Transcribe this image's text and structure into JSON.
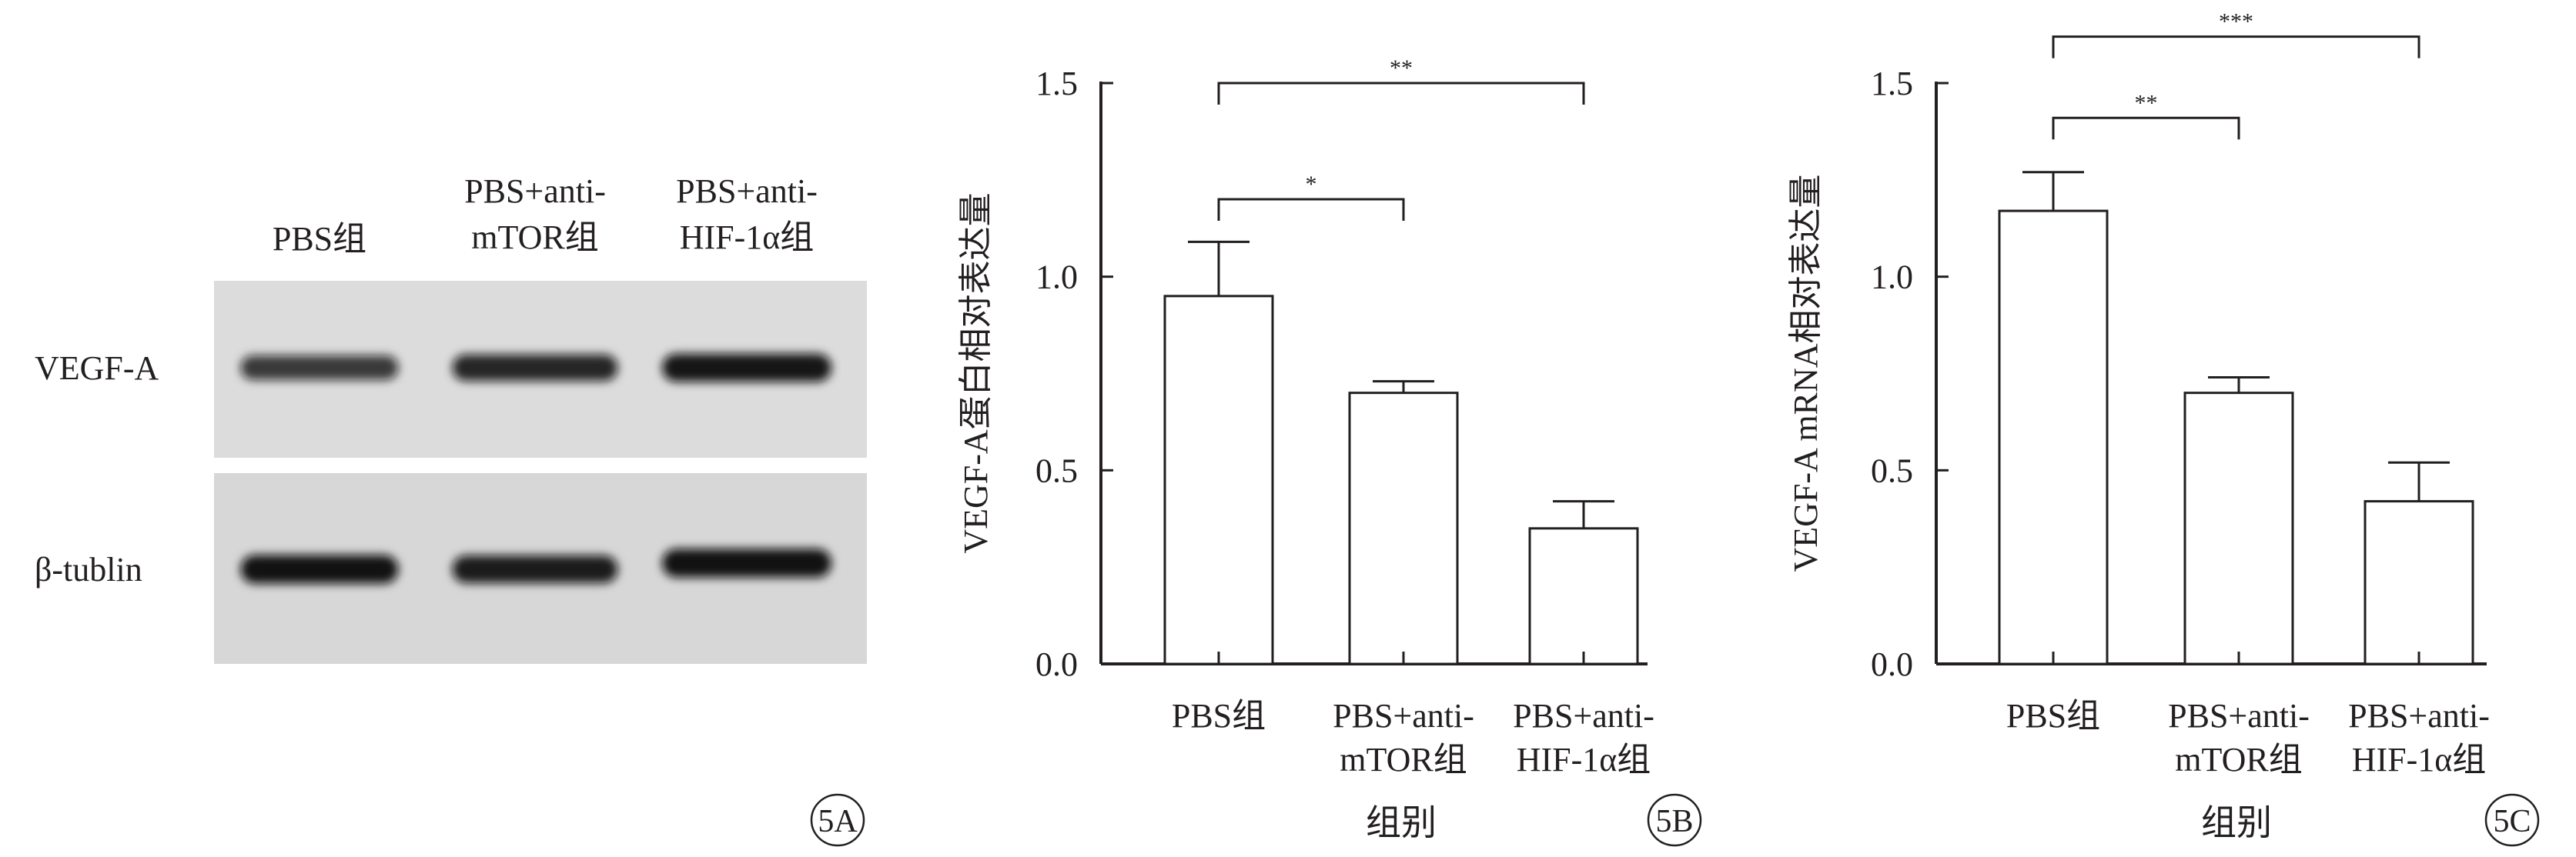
{
  "panel_a": {
    "lanes": [
      "PBS组",
      "PBS+anti-\nmTOR组",
      "PBS+anti-\nHIF-1α组"
    ],
    "bands": [
      "VEGF-A",
      "β-tublin"
    ],
    "band_intensity": {
      "VEGF-A": [
        0.55,
        0.75,
        0.9
      ],
      "β-tublin": [
        0.95,
        0.85,
        0.95
      ]
    },
    "panel_label": "5A"
  },
  "chart_data": [
    {
      "type": "bar",
      "panel_label": "5B",
      "categories": [
        "PBS组",
        "PBS+anti-\nmTOR组",
        "PBS+anti-\nHIF-1α组"
      ],
      "values": [
        0.95,
        0.7,
        0.35
      ],
      "errors": [
        0.14,
        0.03,
        0.07
      ],
      "ylabel": "VEGF-A蛋白相对表达量",
      "xlabel": "组别",
      "ylim": [
        0,
        1.5
      ],
      "yticks": [
        "0.0",
        "0.5",
        "1.0",
        "1.5"
      ],
      "grid": false,
      "significance": [
        {
          "from": 0,
          "to": 1,
          "label": "*",
          "level": 1.2
        },
        {
          "from": 0,
          "to": 2,
          "label": "**",
          "level": 1.5
        }
      ]
    },
    {
      "type": "bar",
      "panel_label": "5C",
      "categories": [
        "PBS组",
        "PBS+anti-\nmTOR组",
        "PBS+anti-\nHIF-1α组"
      ],
      "values": [
        1.17,
        0.7,
        0.42
      ],
      "errors": [
        0.1,
        0.04,
        0.1
      ],
      "ylabel": "VEGF-A mRNA相对表达量",
      "xlabel": "组别",
      "ylim": [
        0,
        1.5
      ],
      "yticks": [
        "0.0",
        "0.5",
        "1.0",
        "1.5"
      ],
      "grid": false,
      "significance": [
        {
          "from": 0,
          "to": 1,
          "label": "**",
          "level": 1.41
        },
        {
          "from": 0,
          "to": 2,
          "label": "***",
          "level": 1.62
        }
      ]
    }
  ]
}
